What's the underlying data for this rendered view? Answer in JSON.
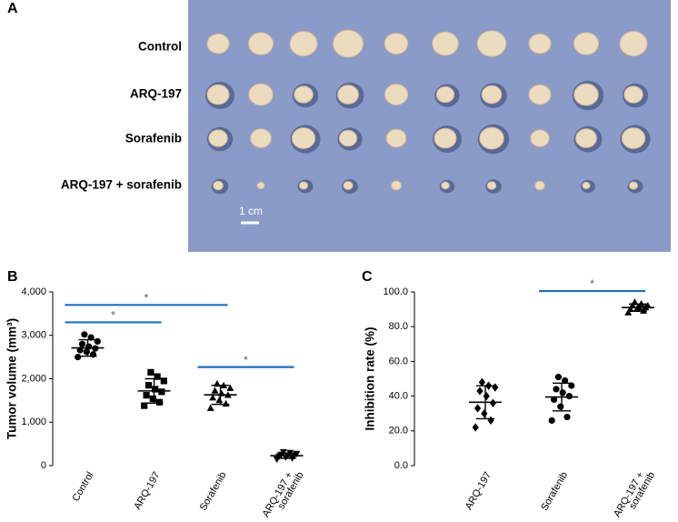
{
  "panel_a": {
    "label": "A",
    "rows": [
      "Control",
      "ARQ-197",
      "Sorafenib",
      "ARQ-197 + sorafenib"
    ],
    "scale_bar": "1 cm"
  },
  "chart_data": [
    {
      "type": "dot",
      "panel": "B",
      "ylabel": "Tumor volume (mm³)",
      "categories": [
        [
          "Control"
        ],
        [
          "ARQ-197"
        ],
        [
          "Sorafenib"
        ],
        [
          "ARQ-197 +",
          "sorafenib"
        ]
      ],
      "markers": [
        "circle",
        "square",
        "triangle",
        "triangle-down"
      ],
      "points": [
        [
          2500,
          2560,
          2620,
          2660,
          2700,
          2740,
          2800,
          2860,
          2950,
          3020
        ],
        [
          1380,
          1460,
          1540,
          1620,
          1700,
          1760,
          1850,
          1950,
          2050,
          2150
        ],
        [
          1320,
          1420,
          1500,
          1560,
          1620,
          1660,
          1720,
          1780,
          1840,
          1880
        ],
        [
          150,
          180,
          200,
          220,
          230,
          240,
          260,
          280,
          300,
          320
        ]
      ],
      "mean": [
        2710,
        1720,
        1630,
        230
      ],
      "sd": [
        190,
        280,
        220,
        60
      ],
      "ylim": [
        0,
        4000
      ],
      "yticks": [
        0,
        {
          "value": 1000,
          "label": "1,000"
        },
        {
          "value": 2000,
          "label": "2,000"
        },
        {
          "value": 3000,
          "label": "3,000"
        },
        {
          "value": 4000,
          "label": "4,000"
        }
      ],
      "color": "#000000",
      "comparison_color": "#1f6fc0",
      "comparisons": [
        {
          "from": 0,
          "to": 1,
          "y": 3300,
          "label": "*"
        },
        {
          "from": 0,
          "to": 2,
          "y": 3700,
          "label": "*"
        },
        {
          "from": 2,
          "to": 3,
          "y": 2270,
          "label": "*"
        }
      ]
    },
    {
      "type": "dot",
      "panel": "C",
      "ylabel": "Inhibition rate (%)",
      "categories": [
        [
          "ARQ-197"
        ],
        [
          "Sorafenib"
        ],
        [
          "ARQ-197 +",
          "sorafenib"
        ]
      ],
      "markers": [
        "diamond",
        "circle",
        "triangle"
      ],
      "points": [
        [
          22,
          26,
          30,
          33,
          36,
          40,
          43,
          45,
          46,
          48
        ],
        [
          26,
          28,
          34,
          38,
          40,
          42,
          44,
          46,
          49,
          51
        ],
        [
          88,
          89,
          90,
          90,
          91,
          91,
          92,
          92,
          93,
          94
        ]
      ],
      "mean": [
        36.5,
        39.5,
        91
      ],
      "sd": [
        9.5,
        8,
        2
      ],
      "ylim": [
        0,
        100
      ],
      "yticks": [
        {
          "value": 0,
          "label": "0.0"
        },
        {
          "value": 20,
          "label": "20.0"
        },
        {
          "value": 40,
          "label": "40.0"
        },
        {
          "value": 60,
          "label": "60.0"
        },
        {
          "value": 80,
          "label": "80.0"
        },
        {
          "value": 100,
          "label": "100.0"
        }
      ],
      "color": "#000000",
      "comparison_color": "#1f6fc0",
      "comparisons": [
        {
          "from": 1,
          "to": 2,
          "y": 100.5,
          "label": "*"
        }
      ]
    }
  ]
}
